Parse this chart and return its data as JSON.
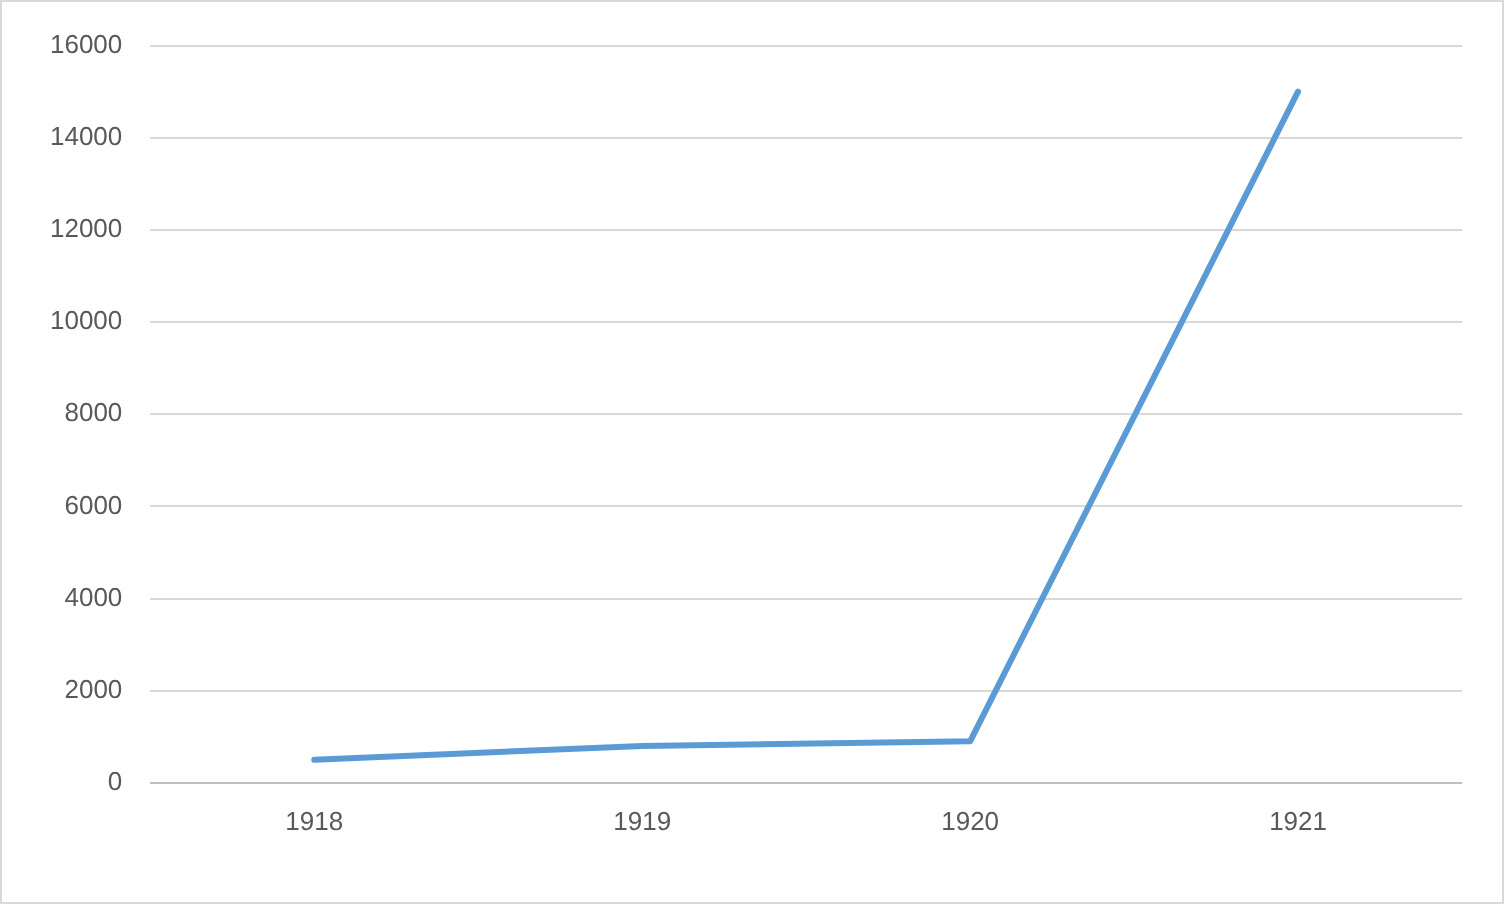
{
  "chart_data": {
    "type": "line",
    "categories": [
      "1918",
      "1919",
      "1920",
      "1921"
    ],
    "series": [
      {
        "color": "#5b9bd5",
        "values": [
          500,
          800,
          900,
          15000
        ]
      }
    ],
    "ylim": [
      0,
      16000
    ],
    "yticks": [
      0,
      2000,
      4000,
      6000,
      8000,
      10000,
      12000,
      14000,
      16000
    ],
    "grid": "y",
    "legend": false,
    "marker": "none",
    "line_style": "solid"
  }
}
